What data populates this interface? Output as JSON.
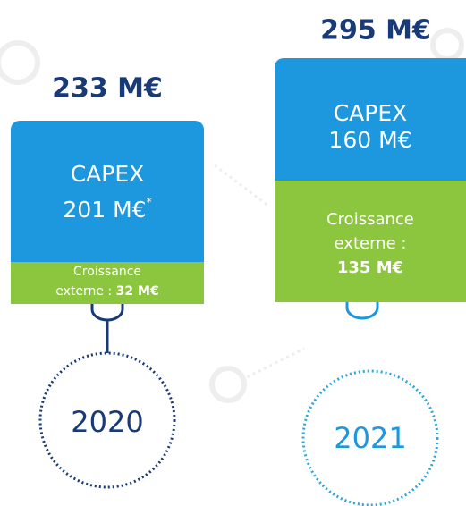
{
  "years": [
    {
      "total": "233 M€",
      "capex_label": "CAPEX",
      "capex_value": "201 M€",
      "capex_note": "*",
      "growth_label_1": "Croissance",
      "growth_label_2": "externe :",
      "growth_value": "32 M€",
      "year": "2020"
    },
    {
      "total": "295 M€",
      "capex_label": "CAPEX",
      "capex_value": "160 M€",
      "growth_label_1": "Croissance",
      "growth_label_2": "externe :",
      "growth_value": "135 M€",
      "year": "2021"
    }
  ]
}
